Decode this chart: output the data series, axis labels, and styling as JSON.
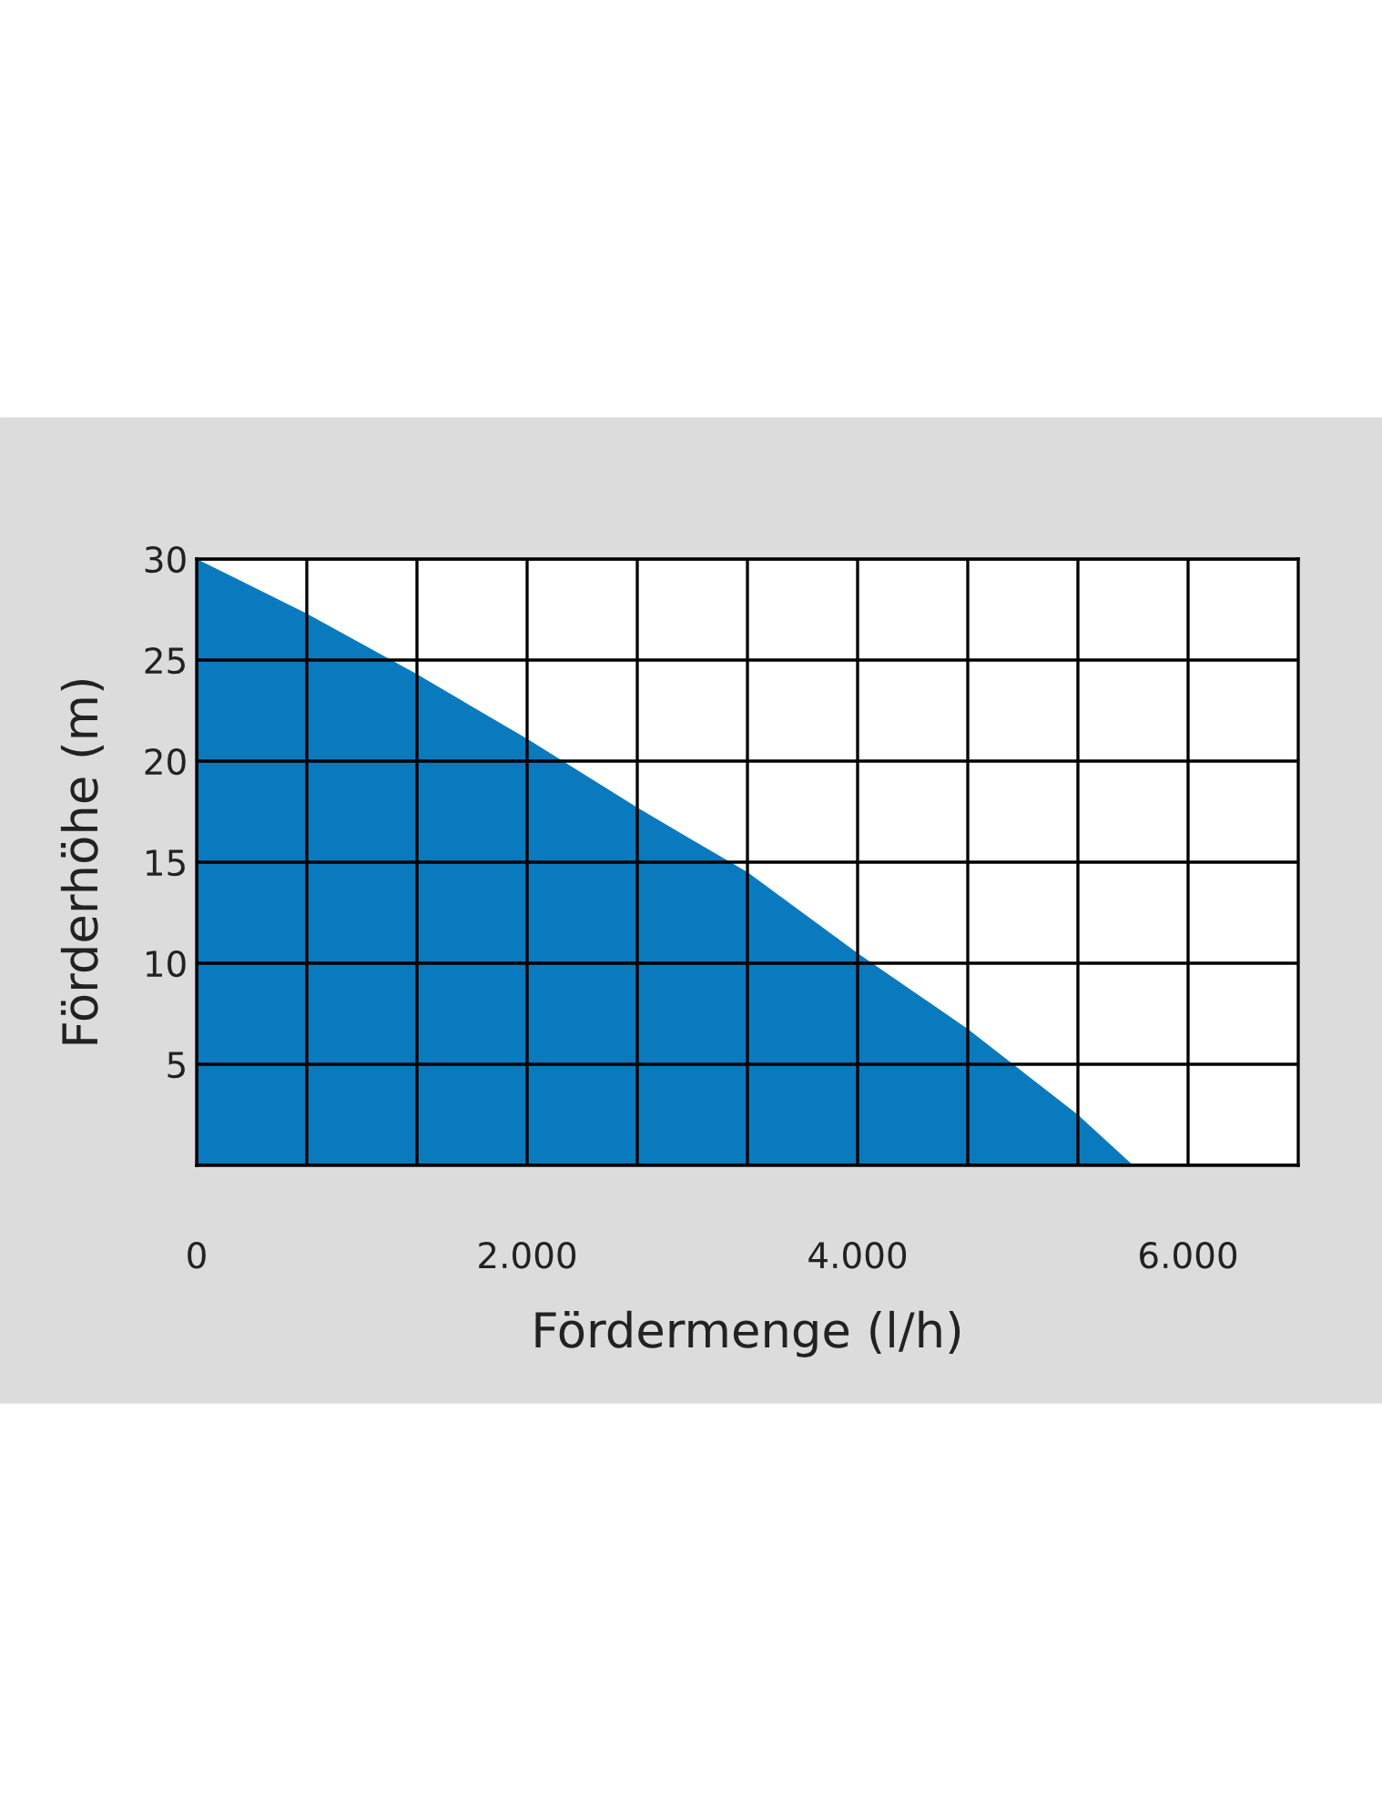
{
  "chart_data": {
    "type": "area",
    "xlabel": "Fördermenge (l/h)",
    "ylabel": "Förderhöhe (m)",
    "x": [
      0,
      666.67,
      1333.33,
      2000,
      2666.67,
      3333.33,
      4000,
      4666.67,
      5333.33,
      5667
    ],
    "series": [
      {
        "color": "#0a7abf",
        "values": [
          30,
          27.3,
          24.3,
          21.1,
          17.7,
          14.5,
          10.5,
          6.75,
          2.5,
          0
        ]
      }
    ],
    "xlim": [
      0,
      6666.67
    ],
    "ylim": [
      0,
      30
    ],
    "xticks": [
      0,
      {
        "value": 666.67,
        "label": null
      },
      {
        "value": 1333.33,
        "label": null
      },
      {
        "value": 2000,
        "label": "2.000"
      },
      {
        "value": 2666.67,
        "label": null
      },
      {
        "value": 3333.33,
        "label": null
      },
      {
        "value": 4000,
        "label": "4.000"
      },
      {
        "value": 4666.67,
        "label": null
      },
      {
        "value": 5333.33,
        "label": null
      },
      {
        "value": 6000,
        "label": "6.000"
      }
    ],
    "yticks": [
      {
        "value": 0,
        "label": null
      },
      5,
      10,
      15,
      20,
      25,
      30
    ],
    "grid": true
  }
}
